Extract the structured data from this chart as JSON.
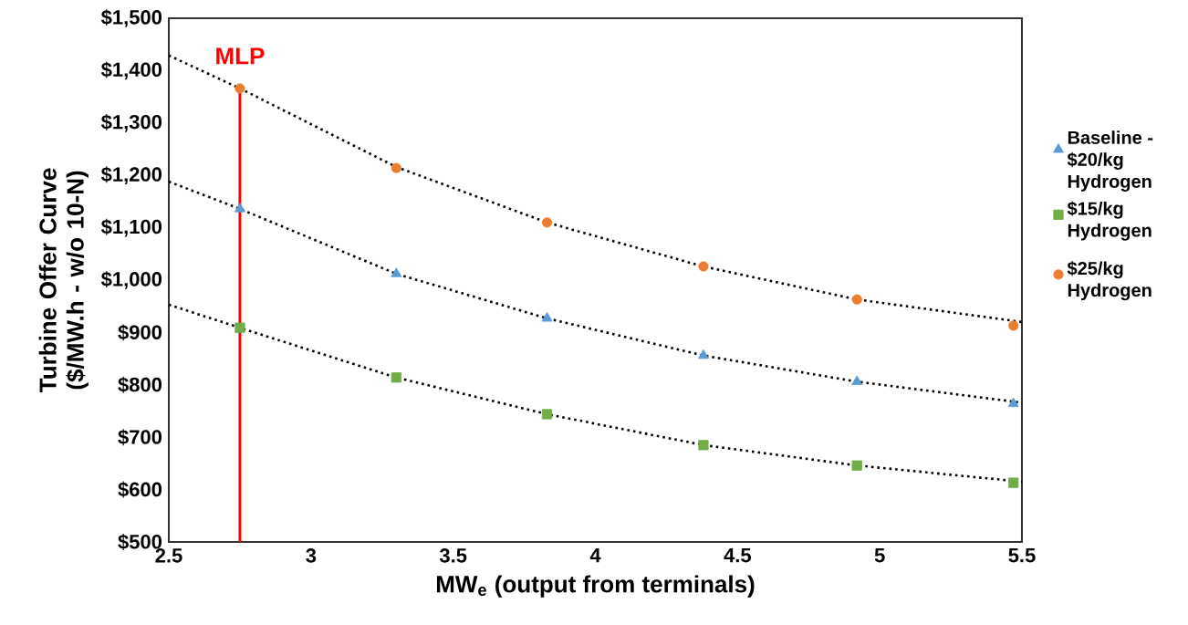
{
  "chart_data": {
    "type": "scatter",
    "xlabel": "MW$_{e}$ (output from terminals)",
    "ylabel": "Turbine Offer Curve ($/MW.h - w/o 10-N)",
    "xlim": [
      2.5,
      5.5
    ],
    "xticks": [
      2.5,
      3,
      3.5,
      4,
      4.5,
      5,
      5.5
    ],
    "ylim": [
      500,
      1500
    ],
    "yticks": [
      {
        "value": 500,
        "label": "$500"
      },
      {
        "value": 600,
        "label": "$600"
      },
      {
        "value": 700,
        "label": "$700"
      },
      {
        "value": 800,
        "label": "$800"
      },
      {
        "value": 900,
        "label": "$900"
      },
      {
        "value": 1000,
        "label": "$1,000"
      },
      {
        "value": 1100,
        "label": "$1,100"
      },
      {
        "value": 1200,
        "label": "$1,200"
      },
      {
        "value": 1300,
        "label": "$1,300"
      },
      {
        "value": 1400,
        "label": "$1,400"
      },
      {
        "value": 1500,
        "label": "$1,500"
      }
    ],
    "grid": false,
    "legend": "right",
    "x": [
      2.75,
      3.3,
      3.83,
      4.38,
      4.92,
      5.47
    ],
    "series": [
      {
        "name": "Baseline - $20/kg Hydrogen",
        "type": "scatter",
        "marker": "triangle",
        "color": "#5b9bd5",
        "values": [
          1136,
          1012,
          927,
          856,
          806,
          764
        ]
      },
      {
        "name": "$15/kg Hydrogen",
        "type": "scatter",
        "marker": "square",
        "color": "#70ad47",
        "values": [
          909,
          814,
          744,
          685,
          646,
          613
        ]
      },
      {
        "name": "$25/kg Hydrogen",
        "type": "scatter",
        "marker": "circle",
        "color": "#ed7d31",
        "values": [
          1366,
          1214,
          1110,
          1026,
          963,
          913
        ]
      },
      {
        "type": "line",
        "line_style": "dotted",
        "marker": "none",
        "color": "#000000",
        "x": [
          2.5,
          2.75,
          3.3,
          3.83,
          4.38,
          4.92,
          5.5
        ],
        "values": [
          1188,
          1136,
          1012,
          927,
          856,
          806,
          766
        ]
      },
      {
        "type": "line",
        "line_style": "dotted",
        "marker": "none",
        "color": "#000000",
        "x": [
          2.5,
          2.75,
          3.3,
          3.83,
          4.38,
          4.92,
          5.5
        ],
        "values": [
          953,
          909,
          814,
          744,
          685,
          646,
          615
        ]
      },
      {
        "type": "line",
        "line_style": "dotted",
        "marker": "none",
        "color": "#000000",
        "x": [
          2.5,
          2.75,
          3.3,
          3.83,
          4.38,
          4.92,
          5.5
        ],
        "values": [
          1429,
          1366,
          1216,
          1110,
          1026,
          963,
          920
        ]
      }
    ],
    "ref_lines": [
      {
        "axis": "x",
        "value": 2.75,
        "label": "MLP",
        "color": "#ff0000"
      }
    ]
  }
}
